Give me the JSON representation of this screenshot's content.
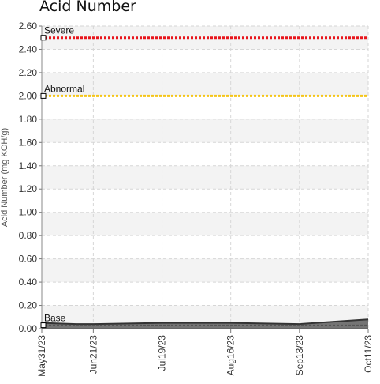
{
  "chart_data": {
    "type": "line",
    "title": "Acid Number",
    "ylabel": "Acid Number (mg KOH/g)",
    "xlabel": "",
    "ylim": [
      0,
      2.6
    ],
    "yticks": [
      0.0,
      0.2,
      0.4,
      0.6,
      0.8,
      1.0,
      1.2,
      1.4,
      1.6,
      1.8,
      2.0,
      2.2,
      2.4,
      2.6
    ],
    "ytick_labels": [
      "0.00",
      "0.20",
      "0.40",
      "0.60",
      "0.80",
      "1.00",
      "1.20",
      "1.40",
      "1.60",
      "1.80",
      "2.00",
      "2.20",
      "2.40",
      "2.60"
    ],
    "x_range": [
      "2023-05-31",
      "2023-10-11"
    ],
    "xticks": [
      "2023-05-31",
      "2023-06-21",
      "2023-07-19",
      "2023-08-16",
      "2023-09-13",
      "2023-10-11"
    ],
    "xtick_labels": [
      "May31/23",
      "Jun21/23",
      "Jul19/23",
      "Aug16/23",
      "Sep13/23",
      "Oct11/23"
    ],
    "grid": true,
    "thresholds": [
      {
        "label": "Severe",
        "value": 2.5,
        "color": "#e8141b"
      },
      {
        "label": "Abnormal",
        "value": 2.0,
        "color": "#f5c518"
      },
      {
        "label": "Base",
        "value": 0.03,
        "color": "#555555"
      }
    ],
    "series": [
      {
        "color": "#4a4a4a",
        "x": [
          "2023-05-31",
          "2023-06-14",
          "2023-06-21",
          "2023-07-19",
          "2023-08-16",
          "2023-09-13",
          "2023-09-27",
          "2023-10-11"
        ],
        "y": [
          0.05,
          0.04,
          0.04,
          0.05,
          0.05,
          0.04,
          0.06,
          0.08
        ]
      }
    ]
  }
}
